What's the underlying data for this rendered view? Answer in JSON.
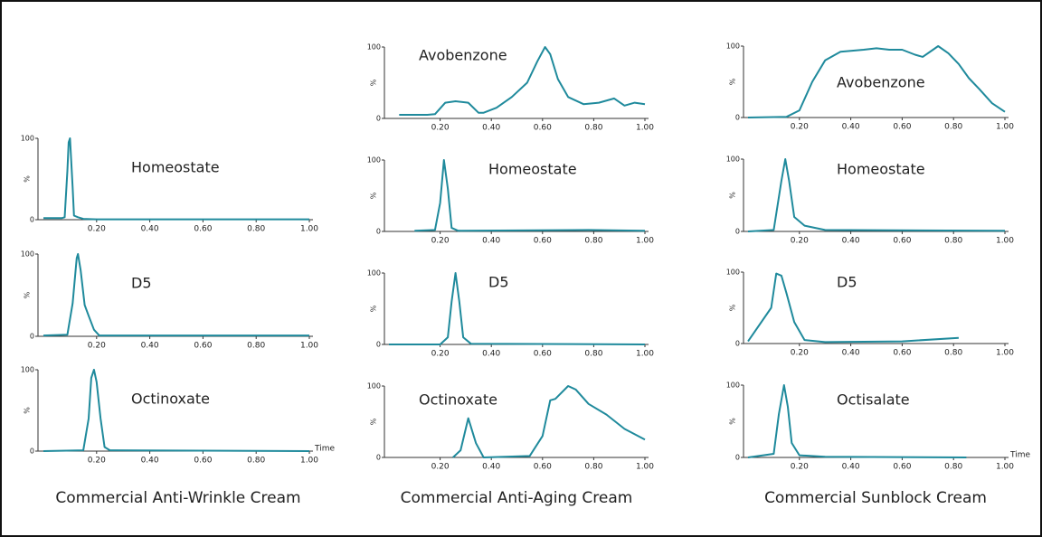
{
  "captions": [
    "Commercial Anti-Wrinkle Cream",
    "Commercial Anti-Aging Cream",
    "Commercial Sunblock Cream"
  ],
  "chart_data": [
    {
      "type": "line",
      "title": "Homeostate",
      "ylabel": "%",
      "color": "#1f8a9c",
      "xlim": [
        0,
        1
      ],
      "ylim": [
        0,
        100
      ],
      "xticks": [
        {
          "value": 0.2,
          "label": "0.20"
        },
        {
          "value": 0.4,
          "label": "0.40"
        },
        {
          "value": 0.6,
          "label": "0.60"
        },
        {
          "value": 0.8,
          "label": "0.80"
        },
        {
          "value": 1,
          "label": "1.00"
        }
      ],
      "yticks": [
        0,
        100
      ],
      "x": [
        0,
        0.07,
        0.08,
        0.09,
        0.095,
        0.1,
        0.11,
        0.115,
        0.13,
        0.15,
        0.2,
        1.0
      ],
      "series": [
        {
          "values": [
            2,
            2,
            3,
            60,
            95,
            100,
            40,
            5,
            3,
            1,
            0.5,
            0.5
          ]
        }
      ]
    },
    {
      "type": "line",
      "title": "D5",
      "ylabel": "%",
      "color": "#1f8a9c",
      "xlim": [
        0,
        1
      ],
      "ylim": [
        0,
        100
      ],
      "xticks": [
        {
          "value": 0.2,
          "label": "0.20"
        },
        {
          "value": 0.4,
          "label": "0.40"
        },
        {
          "value": 0.6,
          "label": "0.60"
        },
        {
          "value": 0.8,
          "label": "0.80"
        },
        {
          "value": 1,
          "label": "1.00"
        }
      ],
      "yticks": [
        0,
        100
      ],
      "x": [
        0,
        0.09,
        0.11,
        0.125,
        0.13,
        0.14,
        0.155,
        0.17,
        0.19,
        0.21,
        1.0
      ],
      "series": [
        {
          "values": [
            1,
            2,
            40,
            95,
            100,
            80,
            38,
            25,
            8,
            1,
            1
          ]
        }
      ]
    },
    {
      "type": "line",
      "title": "Octinoxate",
      "ylabel": "%",
      "xlabel": "Time",
      "color": "#1f8a9c",
      "xlim": [
        0,
        1
      ],
      "ylim": [
        0,
        100
      ],
      "xticks": [
        {
          "value": 0.2,
          "label": "0.20"
        },
        {
          "value": 0.4,
          "label": "0.40"
        },
        {
          "value": 0.6,
          "label": "0.60"
        },
        {
          "value": 0.8,
          "label": "0.80"
        },
        {
          "value": 1,
          "label": "1.00"
        }
      ],
      "yticks": [
        0,
        100
      ],
      "x": [
        0,
        0.15,
        0.17,
        0.18,
        0.19,
        0.2,
        0.215,
        0.23,
        0.25,
        1.0
      ],
      "series": [
        {
          "values": [
            0,
            1,
            40,
            90,
            100,
            85,
            40,
            5,
            1,
            0
          ]
        }
      ]
    },
    {
      "type": "line",
      "title": "Avobenzone",
      "ylabel": "%",
      "color": "#1f8a9c",
      "xlim": [
        0,
        1
      ],
      "ylim": [
        0,
        100
      ],
      "xticks": [
        {
          "value": 0.2,
          "label": "0.20"
        },
        {
          "value": 0.4,
          "label": "0.40"
        },
        {
          "value": 0.6,
          "label": "0.60"
        },
        {
          "value": 0.8,
          "label": "0.80"
        },
        {
          "value": 1,
          "label": "1.00"
        }
      ],
      "yticks": [
        0,
        100
      ],
      "x": [
        0.04,
        0.15,
        0.18,
        0.22,
        0.26,
        0.31,
        0.35,
        0.37,
        0.42,
        0.48,
        0.54,
        0.58,
        0.61,
        0.63,
        0.66,
        0.7,
        0.76,
        0.82,
        0.88,
        0.92,
        0.96,
        1.0
      ],
      "series": [
        {
          "values": [
            5,
            5,
            6,
            22,
            24,
            22,
            8,
            8,
            15,
            30,
            50,
            80,
            100,
            90,
            55,
            30,
            20,
            22,
            28,
            18,
            22,
            20
          ]
        }
      ]
    },
    {
      "type": "line",
      "title": "Homeostate",
      "ylabel": "%",
      "color": "#1f8a9c",
      "xlim": [
        0,
        1
      ],
      "ylim": [
        0,
        100
      ],
      "xticks": [
        {
          "value": 0.2,
          "label": "0.20"
        },
        {
          "value": 0.4,
          "label": "0.40"
        },
        {
          "value": 0.6,
          "label": "0.60"
        },
        {
          "value": 0.8,
          "label": "0.80"
        },
        {
          "value": 1,
          "label": "1.00"
        }
      ],
      "yticks": [
        0,
        100
      ],
      "x": [
        0.1,
        0.18,
        0.2,
        0.215,
        0.23,
        0.245,
        0.27,
        0.78,
        1.0
      ],
      "series": [
        {
          "values": [
            1,
            2,
            40,
            100,
            60,
            5,
            1,
            2,
            1
          ]
        }
      ]
    },
    {
      "type": "line",
      "title": "D5",
      "ylabel": "%",
      "color": "#1f8a9c",
      "xlim": [
        0,
        1
      ],
      "ylim": [
        0,
        100
      ],
      "xticks": [
        {
          "value": 0.2,
          "label": "0.20"
        },
        {
          "value": 0.4,
          "label": "0.40"
        },
        {
          "value": 0.6,
          "label": "0.60"
        },
        {
          "value": 0.8,
          "label": "0.80"
        },
        {
          "value": 1,
          "label": "1.00"
        }
      ],
      "yticks": [
        0,
        100
      ],
      "x": [
        0,
        0.2,
        0.23,
        0.245,
        0.26,
        0.275,
        0.29,
        0.32,
        1.0
      ],
      "series": [
        {
          "values": [
            0,
            0,
            10,
            60,
            100,
            60,
            10,
            1,
            0
          ]
        }
      ]
    },
    {
      "type": "line",
      "title": "Octinoxate",
      "ylabel": "%",
      "color": "#1f8a9c",
      "xlim": [
        0,
        1
      ],
      "ylim": [
        0,
        100
      ],
      "xticks": [
        {
          "value": 0.2,
          "label": "0.20"
        },
        {
          "value": 0.4,
          "label": "0.40"
        },
        {
          "value": 0.6,
          "label": "0.60"
        },
        {
          "value": 0.8,
          "label": "0.80"
        },
        {
          "value": 1,
          "label": "1.00"
        }
      ],
      "yticks": [
        0,
        100
      ],
      "x": [
        0.25,
        0.28,
        0.31,
        0.34,
        0.37,
        0.55,
        0.6,
        0.63,
        0.65,
        0.7,
        0.73,
        0.78,
        0.85,
        0.92,
        1.0
      ],
      "series": [
        {
          "values": [
            0,
            10,
            55,
            20,
            0,
            2,
            30,
            80,
            82,
            100,
            95,
            75,
            60,
            40,
            25
          ]
        }
      ]
    },
    {
      "type": "line",
      "title": "Avobenzone",
      "ylabel": "%",
      "color": "#1f8a9c",
      "xlim": [
        0,
        1
      ],
      "ylim": [
        0,
        100
      ],
      "xticks": [
        {
          "value": 0.2,
          "label": "0.20"
        },
        {
          "value": 0.4,
          "label": "0.40"
        },
        {
          "value": 0.6,
          "label": "0.60"
        },
        {
          "value": 0.8,
          "label": "0.80"
        },
        {
          "value": 1,
          "label": "1.00"
        }
      ],
      "yticks": [
        0,
        100
      ],
      "x": [
        0,
        0.15,
        0.2,
        0.25,
        0.3,
        0.36,
        0.45,
        0.5,
        0.55,
        0.6,
        0.65,
        0.68,
        0.72,
        0.74,
        0.78,
        0.82,
        0.86,
        0.9,
        0.95,
        1.0
      ],
      "series": [
        {
          "values": [
            0,
            1,
            10,
            50,
            80,
            92,
            95,
            97,
            95,
            95,
            88,
            85,
            95,
            100,
            90,
            75,
            55,
            40,
            20,
            8
          ]
        }
      ]
    },
    {
      "type": "line",
      "title": "Homeostate",
      "ylabel": "%",
      "color": "#1f8a9c",
      "xlim": [
        0,
        1
      ],
      "ylim": [
        0,
        100
      ],
      "xticks": [
        {
          "value": 0.2,
          "label": "0.20"
        },
        {
          "value": 0.4,
          "label": "0.40"
        },
        {
          "value": 0.6,
          "label": "0.60"
        },
        {
          "value": 0.8,
          "label": "0.80"
        },
        {
          "value": 1,
          "label": "1.00"
        }
      ],
      "yticks": [
        0,
        100
      ],
      "x": [
        0,
        0.1,
        0.13,
        0.145,
        0.16,
        0.18,
        0.22,
        0.3,
        1.0
      ],
      "series": [
        {
          "values": [
            0,
            2,
            70,
            100,
            70,
            20,
            8,
            2,
            1
          ]
        }
      ]
    },
    {
      "type": "line",
      "title": "D5",
      "ylabel": "%",
      "color": "#1f8a9c",
      "xlim": [
        0,
        1
      ],
      "ylim": [
        0,
        100
      ],
      "xticks": [
        {
          "value": 0.2,
          "label": "0.20"
        },
        {
          "value": 0.4,
          "label": "0.40"
        },
        {
          "value": 0.6,
          "label": "0.60"
        },
        {
          "value": 0.8,
          "label": "0.80"
        },
        {
          "value": 1,
          "label": "1.00"
        }
      ],
      "yticks": [
        0,
        100
      ],
      "x": [
        0,
        0.09,
        0.11,
        0.13,
        0.15,
        0.18,
        0.22,
        0.3,
        0.6,
        0.82
      ],
      "series": [
        {
          "values": [
            3,
            50,
            98,
            95,
            70,
            30,
            5,
            2,
            3,
            8
          ]
        }
      ]
    },
    {
      "type": "line",
      "title": "Octisalate",
      "ylabel": "%",
      "xlabel": "Time",
      "color": "#1f8a9c",
      "xlim": [
        0,
        1
      ],
      "ylim": [
        0,
        100
      ],
      "xticks": [
        {
          "value": 0.2,
          "label": "0.20"
        },
        {
          "value": 0.4,
          "label": "0.40"
        },
        {
          "value": 0.6,
          "label": "0.60"
        },
        {
          "value": 0.8,
          "label": "0.80"
        },
        {
          "value": 1,
          "label": "1.00"
        }
      ],
      "yticks": [
        0,
        100
      ],
      "x": [
        0,
        0.1,
        0.12,
        0.14,
        0.155,
        0.17,
        0.2,
        0.3,
        0.85
      ],
      "series": [
        {
          "values": [
            0,
            5,
            60,
            100,
            70,
            20,
            3,
            1,
            0
          ]
        }
      ]
    }
  ]
}
